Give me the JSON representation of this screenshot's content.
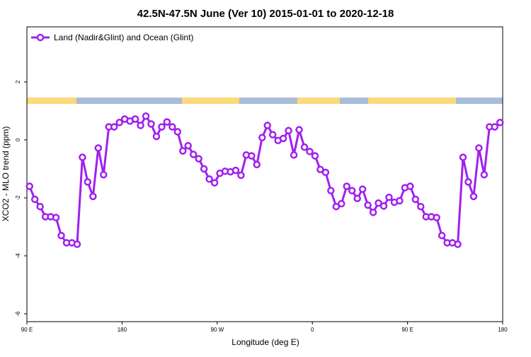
{
  "chart_data": {
    "type": "line",
    "title": "42.5N-47.5N June (Ver 10)   2015-01-01 to 2020-12-18",
    "xlabel": "Longitude (deg E)",
    "ylabel": "XCO2 - MLO trend (ppm)",
    "xlim": [
      90,
      540
    ],
    "ylim": [
      -6.27,
      3.9
    ],
    "xticks": [
      {
        "value": 90,
        "label": "90 E"
      },
      180,
      {
        "value": 270,
        "label": "90 W"
      },
      {
        "value": 360,
        "label": "0"
      },
      {
        "value": 450,
        "label": "90 E"
      },
      {
        "value": 540,
        "label": "180"
      }
    ],
    "yticks": [
      -6,
      -4,
      -2,
      0,
      2
    ],
    "legend": "upper left",
    "x": [
      92.5,
      97.5,
      102.5,
      107.5,
      112.5,
      117.5,
      122.5,
      127.5,
      132.5,
      137.5,
      142.5,
      147.5,
      152.5,
      157.5,
      162.5,
      167.5,
      172.5,
      177.5,
      182.5,
      187.5,
      192.5,
      197.5,
      202.5,
      207.5,
      212.5,
      217.5,
      222.5,
      227.5,
      232.5,
      237.5,
      242.5,
      247.5,
      252.5,
      257.5,
      262.5,
      267.5,
      272.5,
      277.5,
      282.5,
      287.5,
      292.5,
      297.5,
      302.5,
      307.5,
      312.5,
      317.5,
      322.5,
      327.5,
      332.5,
      337.5,
      342.5,
      347.5,
      352.5,
      357.5,
      362.5,
      367.5,
      372.5,
      377.5,
      382.5,
      387.5,
      392.5,
      397.5,
      402.5,
      407.5,
      412.5,
      417.5,
      422.5,
      427.5,
      432.5,
      437.5,
      442.5,
      447.5,
      452.5,
      457.5,
      462.5,
      467.5,
      472.5,
      477.5,
      482.5,
      487.5,
      492.5,
      497.5,
      502.5,
      507.5,
      512.5,
      517.5,
      522.5,
      527.5,
      532.5,
      537.5
    ],
    "series": [
      {
        "name": "Land (Nadir&Glint) and Ocean (Glint)",
        "color": "#a020f0",
        "values": [
          -1.6,
          -2.05,
          -2.3,
          -2.65,
          -2.65,
          -2.68,
          -3.3,
          -3.55,
          -3.55,
          -3.6,
          -0.6,
          -1.45,
          -1.95,
          -0.28,
          -1.2,
          0.45,
          0.45,
          0.6,
          0.72,
          0.65,
          0.72,
          0.5,
          0.82,
          0.55,
          0.12,
          0.45,
          0.62,
          0.45,
          0.28,
          -0.38,
          -0.2,
          -0.5,
          -0.65,
          -1.0,
          -1.35,
          -1.48,
          -1.15,
          -1.08,
          -1.1,
          -1.05,
          -1.22,
          -0.52,
          -0.55,
          -0.85,
          0.08,
          0.5,
          0.18,
          -0.02,
          0.05,
          0.32,
          -0.52,
          0.35,
          -0.25,
          -0.4,
          -0.55,
          -1.02,
          -1.12,
          -1.75,
          -2.3,
          -2.2,
          -1.6,
          -1.75,
          -2.02,
          -1.7,
          -2.25,
          -2.5,
          -2.18,
          -2.28,
          -1.98,
          -2.15,
          -2.1,
          -1.65,
          -1.6,
          -2.05,
          -2.3,
          -2.65,
          -2.65,
          -2.68,
          -3.3,
          -3.55,
          -3.55,
          -3.6,
          -0.6,
          -1.45,
          -1.95,
          -0.28,
          -1.2,
          0.45,
          0.45,
          0.6
        ]
      }
    ]
  }
}
